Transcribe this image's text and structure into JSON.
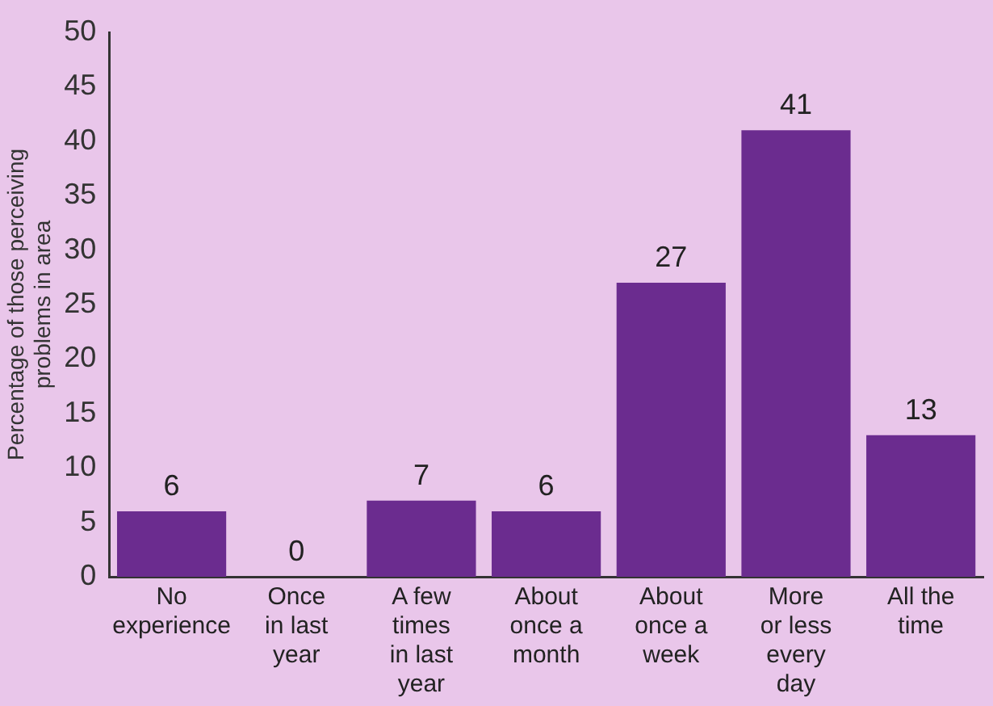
{
  "chart_data": {
    "type": "bar",
    "ylabel": "Percentage of those perceiving\nproblems in area",
    "categories": [
      "No\nexperience",
      "Once\nin last\nyear",
      "A few\ntimes\nin last\nyear",
      "About\nonce a\nmonth",
      "About\nonce a\nweek",
      "More\nor less\nevery\nday",
      "All the\ntime"
    ],
    "values": [
      6,
      0,
      7,
      6,
      27,
      41,
      13
    ],
    "color": "#6b2c8f",
    "data_labels": true,
    "grid": false,
    "ylim": [
      0,
      50
    ],
    "yticks": [
      0,
      5,
      10,
      15,
      20,
      25,
      30,
      35,
      40,
      45,
      50
    ]
  }
}
